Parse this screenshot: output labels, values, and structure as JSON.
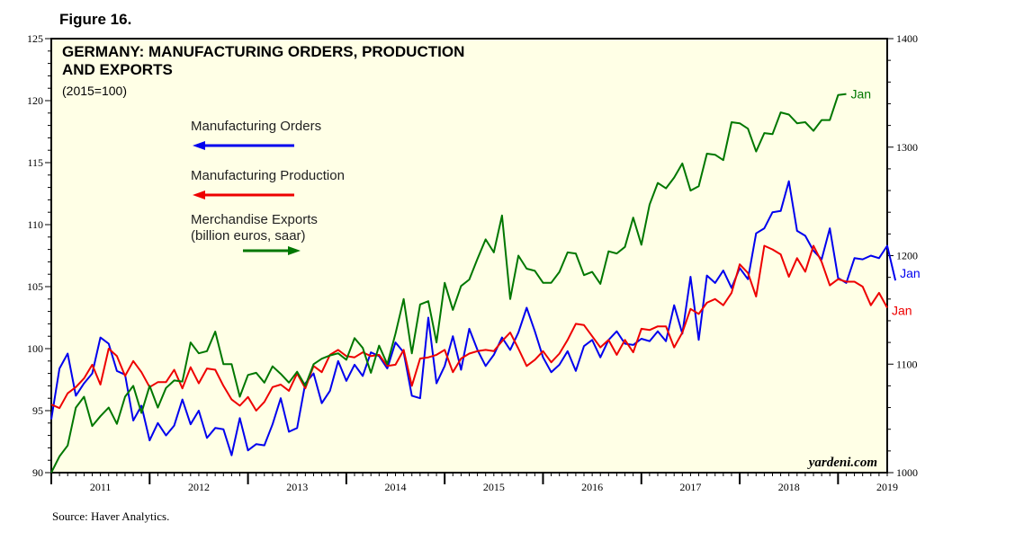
{
  "figure_label": "Figure 16.",
  "source": "Source: Haver Analytics.",
  "credit": "yardeni.com",
  "chart_data": {
    "type": "line",
    "title": "GERMANY: MANUFACTURING ORDERS, PRODUCTION",
    "title_line2": "AND EXPORTS",
    "subtitle": "(2015=100)",
    "x_tick_labels": [
      "2011",
      "2012",
      "2013",
      "2014",
      "2015",
      "2016",
      "2017",
      "2018",
      "2019"
    ],
    "x_range": [
      2011.0,
      2019.5
    ],
    "left_axis": {
      "ylim": [
        90,
        125
      ],
      "ticks": [
        90,
        95,
        100,
        105,
        110,
        115,
        120,
        125
      ]
    },
    "right_axis": {
      "ylim": [
        1000,
        1400
      ],
      "ticks": [
        1000,
        1100,
        1200,
        1300,
        1400
      ]
    },
    "grid": false,
    "series": [
      {
        "name": "Manufacturing Orders",
        "axis": "left",
        "color": "#0000ee",
        "end_label": "Jan",
        "start": "2011-01",
        "values": [
          94.3,
          98.4,
          99.6,
          96.2,
          97.2,
          98.0,
          100.9,
          100.4,
          98.2,
          97.9,
          94.2,
          95.4,
          92.6,
          94.0,
          93.0,
          93.8,
          95.9,
          93.9,
          95.0,
          92.8,
          93.6,
          93.5,
          91.4,
          94.4,
          91.8,
          92.3,
          92.2,
          93.9,
          96.0,
          93.3,
          93.6,
          97.2,
          98.0,
          95.6,
          96.6,
          99.0,
          97.4,
          98.7,
          97.8,
          99.7,
          99.4,
          98.4,
          100.5,
          99.7,
          96.2,
          96.0,
          102.5,
          97.2,
          98.6,
          101.0,
          98.3,
          101.6,
          99.9,
          98.6,
          99.5,
          100.9,
          99.9,
          101.3,
          103.3,
          101.4,
          99.3,
          98.1,
          98.7,
          99.8,
          98.2,
          100.2,
          100.7,
          99.3,
          100.7,
          101.4,
          100.4,
          100.3,
          100.8,
          100.6,
          101.4,
          100.6,
          103.5,
          101.2,
          105.8,
          100.7,
          105.9,
          105.3,
          106.3,
          104.9,
          106.5,
          105.6,
          109.3,
          109.7,
          111.0,
          111.1,
          113.5,
          109.5,
          109.1,
          107.9,
          107.2,
          109.7,
          105.7,
          105.3,
          107.3,
          107.2,
          107.5,
          107.3,
          108.3,
          105.5
        ]
      },
      {
        "name": "Manufacturing Production",
        "axis": "left",
        "color": "#ee0000",
        "end_label": "Jan",
        "start": "2011-01",
        "values": [
          95.5,
          95.2,
          96.4,
          96.9,
          97.6,
          98.7,
          97.1,
          100.0,
          99.4,
          97.8,
          99.0,
          98.1,
          96.9,
          97.3,
          97.3,
          98.3,
          96.8,
          98.5,
          97.2,
          98.4,
          98.3,
          97.0,
          95.9,
          95.4,
          96.1,
          95.0,
          95.7,
          96.9,
          97.1,
          96.6,
          98.0,
          96.8,
          98.6,
          98.1,
          99.5,
          99.9,
          99.4,
          99.3,
          99.7,
          99.4,
          99.5,
          98.6,
          98.7,
          99.9,
          97.0,
          99.2,
          99.3,
          99.5,
          99.9,
          98.1,
          99.2,
          99.6,
          99.8,
          99.9,
          99.8,
          100.6,
          101.3,
          100.0,
          98.6,
          99.1,
          99.8,
          98.9,
          99.6,
          100.7,
          102.0,
          101.9,
          101.0,
          100.1,
          100.7,
          99.5,
          100.7,
          99.7,
          101.6,
          101.5,
          101.8,
          101.8,
          100.1,
          101.3,
          103.2,
          102.8,
          103.7,
          104.0,
          103.5,
          104.5,
          106.8,
          106.1,
          104.2,
          108.3,
          108.0,
          107.6,
          105.8,
          107.3,
          106.2,
          108.3,
          107.0,
          105.1,
          105.6,
          105.4,
          105.4,
          105.0,
          103.5,
          104.5,
          103.3
        ]
      },
      {
        "name": "Merchandise Exports",
        "name_line2": "(billion euros, saar)",
        "axis": "right",
        "color": "#007700",
        "end_label": "Jan",
        "start": "2011-01",
        "values": [
          1000,
          1015,
          1025,
          1060,
          1070,
          1043,
          1052,
          1060,
          1045,
          1070,
          1080,
          1055,
          1080,
          1060,
          1078,
          1085,
          1084,
          1120,
          1110,
          1112,
          1130,
          1100,
          1100,
          1070,
          1090,
          1092,
          1083,
          1098,
          1091,
          1083,
          1093,
          1080,
          1100,
          1105,
          1108,
          1110,
          1104,
          1124,
          1115,
          1092,
          1117,
          1100,
          1128,
          1160,
          1110,
          1155,
          1158,
          1120,
          1175,
          1150,
          1172,
          1178,
          1197,
          1215,
          1203,
          1237,
          1160,
          1200,
          1188,
          1186,
          1175,
          1175,
          1185,
          1203,
          1202,
          1182,
          1185,
          1174,
          1204,
          1202,
          1208,
          1235,
          1210,
          1247,
          1267,
          1262,
          1272,
          1285,
          1260,
          1264,
          1294,
          1293,
          1288,
          1323,
          1322,
          1317,
          1296,
          1313,
          1312,
          1332,
          1330,
          1322,
          1323,
          1315,
          1325,
          1325,
          1348,
          1349
        ],
        "notes": ""
      }
    ]
  }
}
